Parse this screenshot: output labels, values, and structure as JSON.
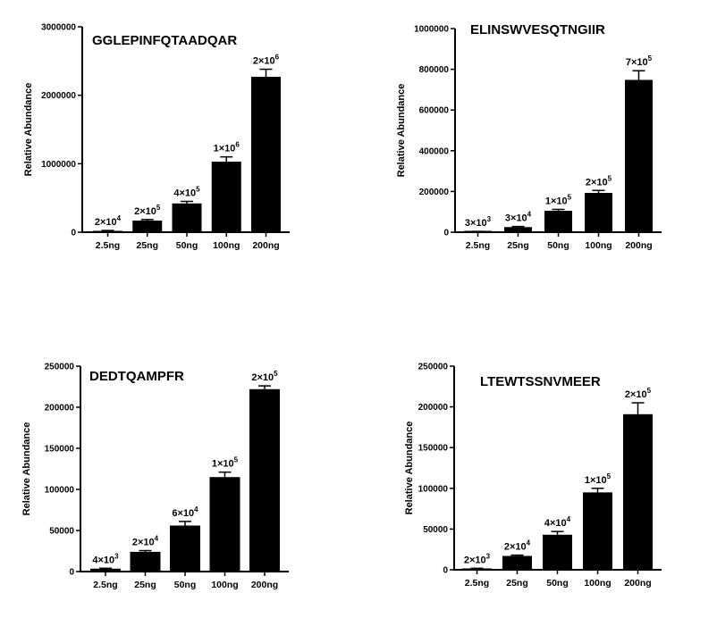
{
  "chart_data": [
    {
      "type": "bar",
      "title": "GGLEPINFQTAADQAR",
      "ylabel": "Relative Abundance",
      "xlabel": "",
      "categories": [
        "2.5ng",
        "25ng",
        "50ng",
        "100ng",
        "200ng"
      ],
      "values": [
        20000,
        170000,
        420000,
        1030000,
        2270000
      ],
      "errors": [
        5000,
        15000,
        30000,
        70000,
        110000
      ],
      "data_labels": [
        {
          "base": "2×10",
          "exp": "4"
        },
        {
          "base": "2×10",
          "exp": "5"
        },
        {
          "base": "4×10",
          "exp": "5"
        },
        {
          "base": "1×10",
          "exp": "6"
        },
        {
          "base": "2×10",
          "exp": "6"
        }
      ],
      "ylim": [
        0,
        3000000
      ],
      "yticks": [
        0,
        1000000,
        2000000,
        3000000
      ],
      "ytick_labels": [
        "0",
        "1000000",
        "2000000",
        "3000000"
      ]
    },
    {
      "type": "bar",
      "title": "ELINSWVESQTNGIIR",
      "ylabel": "Relative Abundance",
      "xlabel": "",
      "categories": [
        "2.5ng",
        "25ng",
        "50ng",
        "100ng",
        "200ng"
      ],
      "values": [
        3000,
        25000,
        105000,
        193000,
        748000
      ],
      "errors": [
        1000,
        3000,
        7000,
        12000,
        45000
      ],
      "data_labels": [
        {
          "base": "3×10",
          "exp": "3"
        },
        {
          "base": "3×10",
          "exp": "4"
        },
        {
          "base": "1×10",
          "exp": "5"
        },
        {
          "base": "2×10",
          "exp": "5"
        },
        {
          "base": "7×10",
          "exp": "5"
        }
      ],
      "ylim": [
        0,
        1000000
      ],
      "yticks": [
        0,
        200000,
        400000,
        600000,
        800000,
        1000000
      ],
      "ytick_labels": [
        "0",
        "200000",
        "400000",
        "600000",
        "800000",
        "1000000"
      ]
    },
    {
      "type": "bar",
      "title": "DEDTQAMPFR",
      "ylabel": "Relative Abundance",
      "xlabel": "",
      "categories": [
        "2.5ng",
        "25ng",
        "50ng",
        "100ng",
        "200ng"
      ],
      "values": [
        3500,
        24000,
        56000,
        115000,
        222000
      ],
      "errors": [
        500,
        1500,
        5000,
        6000,
        4000
      ],
      "data_labels": [
        {
          "base": "4×10",
          "exp": "3"
        },
        {
          "base": "2×10",
          "exp": "4"
        },
        {
          "base": "6×10",
          "exp": "4"
        },
        {
          "base": "1×10",
          "exp": "5"
        },
        {
          "base": "2×10",
          "exp": "5"
        }
      ],
      "ylim": [
        0,
        250000
      ],
      "yticks": [
        0,
        50000,
        100000,
        150000,
        200000,
        250000
      ],
      "ytick_labels": [
        "0",
        "50000",
        "100000",
        "150000",
        "200000",
        "250000"
      ]
    },
    {
      "type": "bar",
      "title": "LTEWTSSNVMEER",
      "ylabel": "Relative Abundance",
      "xlabel": "",
      "categories": [
        "2.5ng",
        "25ng",
        "50ng",
        "100ng",
        "200ng"
      ],
      "values": [
        1500,
        17000,
        43000,
        95000,
        191000
      ],
      "errors": [
        300,
        1000,
        4000,
        5000,
        14000
      ],
      "data_labels": [
        {
          "base": "2×10",
          "exp": "3"
        },
        {
          "base": "2×10",
          "exp": "4"
        },
        {
          "base": "4×10",
          "exp": "4"
        },
        {
          "base": "1×10",
          "exp": "5"
        },
        {
          "base": "2×10",
          "exp": "5"
        }
      ],
      "ylim": [
        0,
        250000
      ],
      "yticks": [
        0,
        50000,
        100000,
        150000,
        200000,
        250000
      ],
      "ytick_labels": [
        "0",
        "50000",
        "100000",
        "150000",
        "200000",
        "250000"
      ]
    }
  ]
}
